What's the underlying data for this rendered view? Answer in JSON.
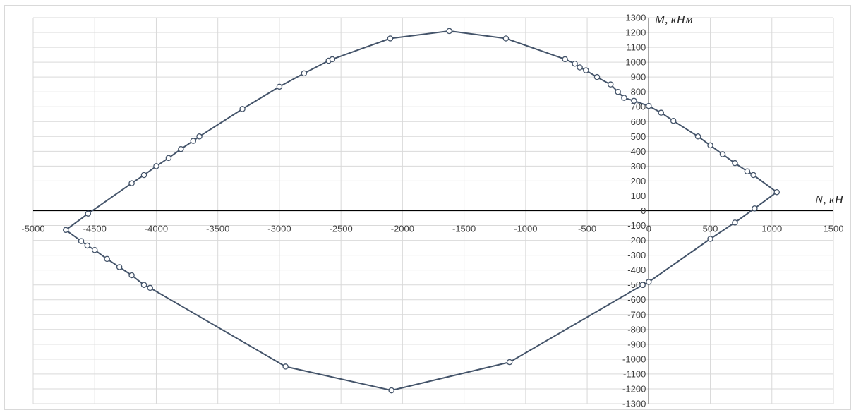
{
  "chart_data": {
    "type": "line",
    "title": "",
    "xlabel": "N, кН",
    "ylabel": "M, кНм",
    "xlim": [
      -5000,
      1500
    ],
    "ylim": [
      -1300,
      1300
    ],
    "x_major": 500,
    "y_major": 100,
    "grid": true,
    "x_tick_labels": [
      "-5000",
      "-4500",
      "-4000",
      "-3500",
      "-3000",
      "-2500",
      "-2000",
      "-1500",
      "-1000",
      "-500",
      "0",
      "500",
      "1000",
      "1500"
    ],
    "y_tick_labels": [
      "1300",
      "1200",
      "1100",
      "1000",
      "900",
      "800",
      "700",
      "600",
      "500",
      "400",
      "300",
      "200",
      "100",
      "0",
      "-100",
      "-200",
      "-300",
      "-400",
      "-500",
      "-600",
      "-700",
      "-800",
      "-900",
      "-1000",
      "-1100",
      "-1200",
      "-1300"
    ],
    "line_color": "#44546a",
    "marker_fill": "#ffffff",
    "series": [
      {
        "points": [
          [
            -4735,
            -130
          ],
          [
            -4554,
            -20
          ],
          [
            -4200,
            185
          ],
          [
            -4100,
            240
          ],
          [
            -4000,
            300
          ],
          [
            -3900,
            355
          ],
          [
            -3800,
            415
          ],
          [
            -3700,
            470
          ],
          [
            -3650,
            500
          ],
          [
            -3300,
            685
          ],
          [
            -3000,
            835
          ],
          [
            -2800,
            925
          ],
          [
            -2600,
            1010
          ],
          [
            -2570,
            1020
          ],
          [
            -2100,
            1160
          ],
          [
            -1620,
            1210
          ],
          [
            -1160,
            1160
          ],
          [
            -680,
            1020
          ],
          [
            -600,
            990
          ],
          [
            -560,
            965
          ],
          [
            -510,
            945
          ],
          [
            -420,
            900
          ],
          [
            -310,
            850
          ],
          [
            -250,
            800
          ],
          [
            -200,
            760
          ],
          [
            -120,
            740
          ],
          [
            0,
            705
          ],
          [
            100,
            660
          ],
          [
            200,
            605
          ],
          [
            400,
            500
          ],
          [
            500,
            440
          ],
          [
            600,
            380
          ],
          [
            700,
            320
          ],
          [
            800,
            265
          ],
          [
            850,
            240
          ],
          [
            1040,
            125
          ],
          [
            860,
            15
          ],
          [
            700,
            -80
          ],
          [
            500,
            -190
          ],
          [
            0,
            -480
          ],
          [
            -50,
            -500
          ],
          [
            -1130,
            -1020
          ],
          [
            -2090,
            -1210
          ],
          [
            -2950,
            -1050
          ],
          [
            -4050,
            -520
          ],
          [
            -4100,
            -500
          ],
          [
            -4200,
            -435
          ],
          [
            -4300,
            -380
          ],
          [
            -4400,
            -325
          ],
          [
            -4500,
            -265
          ],
          [
            -4560,
            -235
          ],
          [
            -4610,
            -205
          ],
          [
            -4735,
            -130
          ]
        ]
      }
    ]
  }
}
